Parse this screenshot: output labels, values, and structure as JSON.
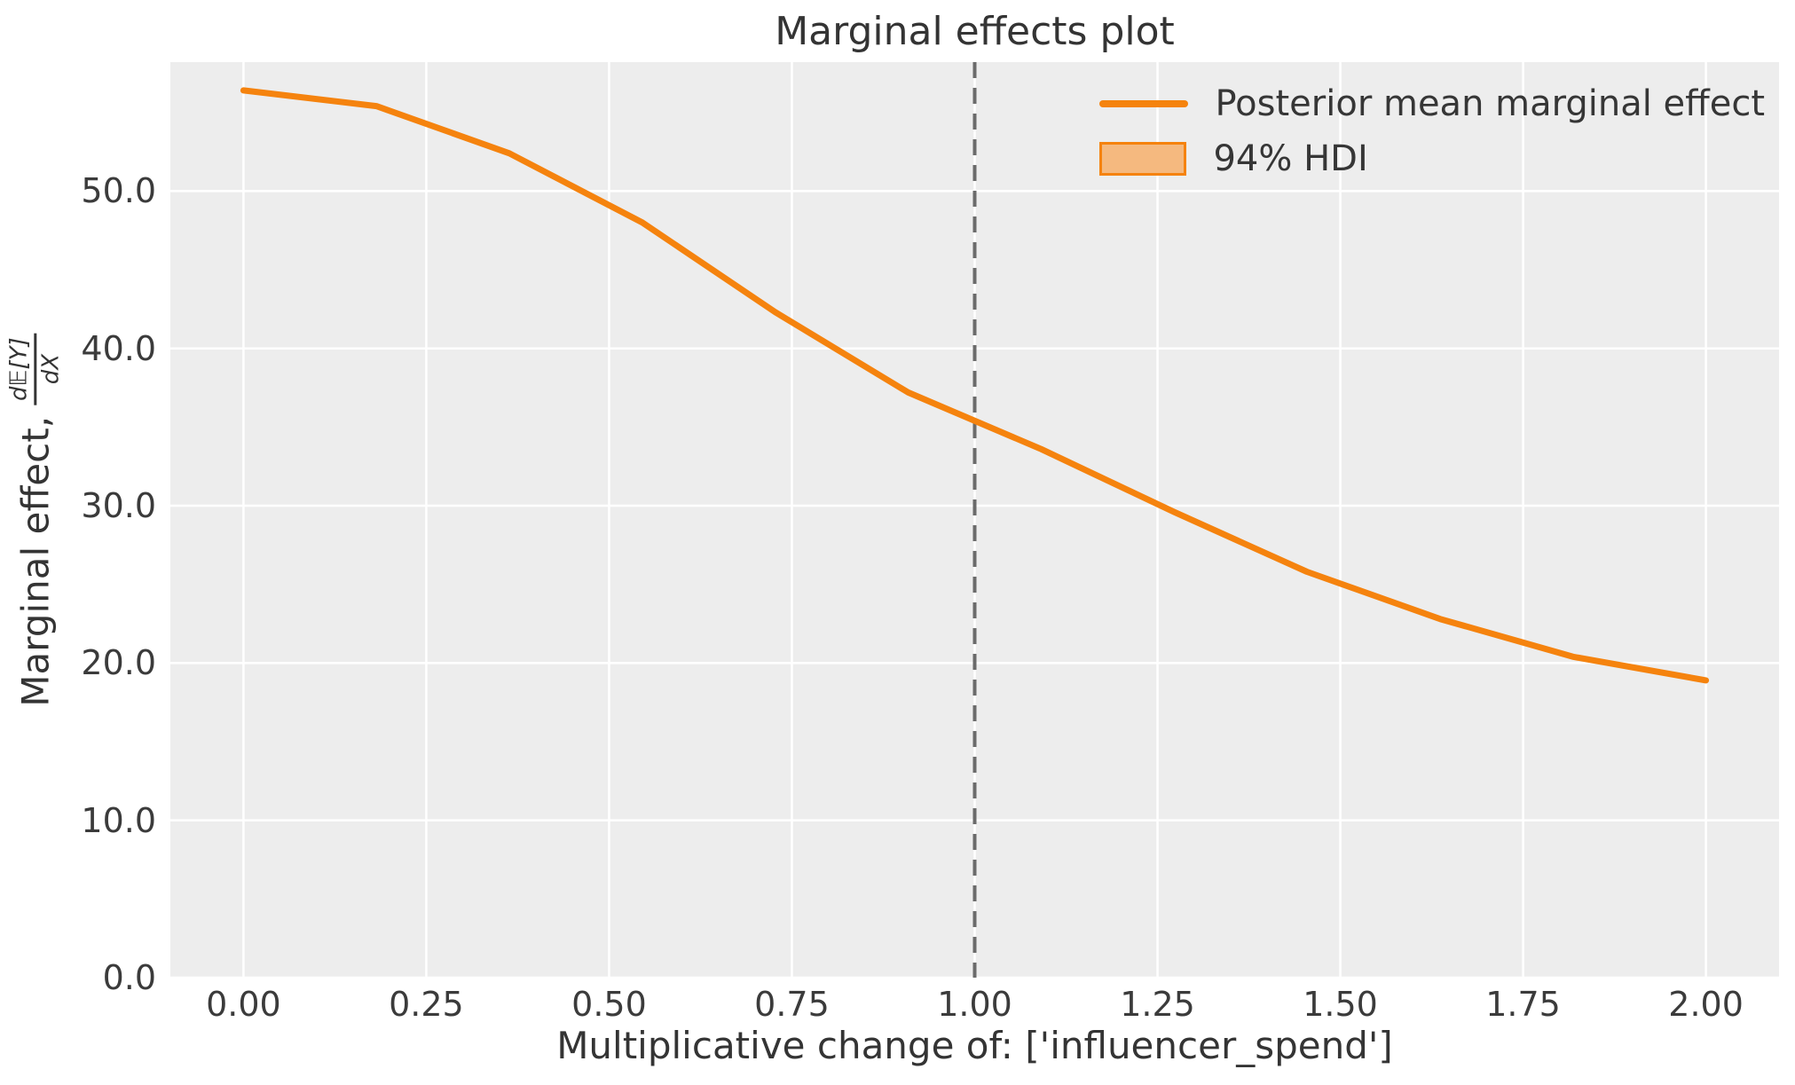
{
  "figure": {
    "title": "Marginal effects plot"
  },
  "colors": {
    "figure_background": "#ffffff",
    "plot_background": "#ededed",
    "grid": "#ffffff",
    "line": "#f5830e",
    "hdi_fill": "#f5b97f",
    "reference_line": "#6b6b6b",
    "text": "#343434",
    "tick_text": "#3b3b3b"
  },
  "legend": {
    "items": [
      {
        "label": "Posterior mean marginal effect",
        "type": "line"
      },
      {
        "label": "94% HDI",
        "type": "patch"
      }
    ]
  },
  "x_axis": {
    "label": "Multiplicative change of: ['influencer_spend']",
    "ticks": [
      {
        "value": 0.0,
        "label": "0.00"
      },
      {
        "value": 0.25,
        "label": "0.25"
      },
      {
        "value": 0.5,
        "label": "0.50"
      },
      {
        "value": 0.75,
        "label": "0.75"
      },
      {
        "value": 1.0,
        "label": "1.00"
      },
      {
        "value": 1.25,
        "label": "1.25"
      },
      {
        "value": 1.5,
        "label": "1.50"
      },
      {
        "value": 1.75,
        "label": "1.75"
      },
      {
        "value": 2.0,
        "label": "2.00"
      }
    ]
  },
  "y_axis": {
    "label_text": "Marginal effect,",
    "fraction": {
      "numerator": "d𝔼[Y]",
      "denominator": "dX"
    },
    "ticks": [
      {
        "value": 0,
        "label": "0.0"
      },
      {
        "value": 10,
        "label": "10.0"
      },
      {
        "value": 20,
        "label": "20.0"
      },
      {
        "value": 30,
        "label": "30.0"
      },
      {
        "value": 40,
        "label": "40.0"
      },
      {
        "value": 50,
        "label": "50.0"
      }
    ]
  },
  "chart_data": {
    "type": "line",
    "title": "Marginal effects plot",
    "xlabel": "Multiplicative change of: ['influencer_spend']",
    "ylabel": "Marginal effect, d𝔼[Y]/dX",
    "xlim": [
      -0.1,
      2.1
    ],
    "ylim": [
      0,
      58.2
    ],
    "grid": true,
    "legend_position": "upper right",
    "reference_line_x": 1.0,
    "hdi_label": "94% HDI",
    "series": [
      {
        "name": "Posterior mean marginal effect",
        "x": [
          0.0,
          0.1818,
          0.3636,
          0.5455,
          0.7273,
          0.9091,
          1.0909,
          1.2727,
          1.4545,
          1.6364,
          1.8182,
          2.0
        ],
        "y": [
          56.4,
          55.4,
          52.4,
          48.0,
          42.3,
          37.2,
          33.6,
          29.6,
          25.8,
          22.8,
          20.4,
          18.9
        ]
      }
    ]
  }
}
